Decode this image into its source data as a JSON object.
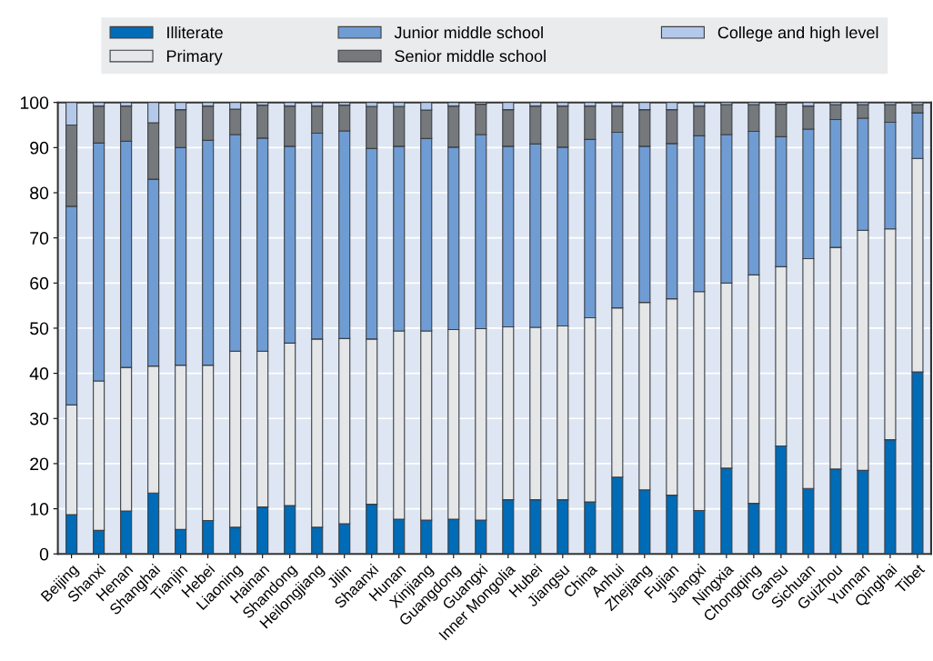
{
  "chart_data": {
    "type": "bar",
    "stacked": true,
    "categories": [
      "Beijing",
      "Shanxi",
      "Henan",
      "Shanghai",
      "Tianjin",
      "Hebei",
      "Liaoning",
      "Hainan",
      "Shandong",
      "Heilongjiang",
      "Jilin",
      "Shaanxi",
      "Hunan",
      "Xinjiang",
      "Guangdong",
      "Guangxi",
      "Inner Mongolia",
      "Hubei",
      "Jiangsu",
      "China",
      "Anhui",
      "Zhejiang",
      "Fujian",
      "Jiangxi",
      "Ningxia",
      "Chongqing",
      "Gansu",
      "Sichuan",
      "Guizhou",
      "Yunnan",
      "Qinghai",
      "Tibet"
    ],
    "series": [
      {
        "name": "Illiterate",
        "color": "#006bb6",
        "values": [
          8.7,
          5.2,
          9.5,
          13.5,
          5.4,
          7.4,
          5.9,
          10.4,
          10.7,
          5.9,
          6.7,
          11,
          7.7,
          7.5,
          7.7,
          7.5,
          12,
          12,
          12,
          11.5,
          17,
          14.2,
          13,
          9.6,
          19,
          11.2,
          23.9,
          14.5,
          18.8,
          18.5,
          25.3,
          40.3
        ]
      },
      {
        "name": "Primary",
        "color": "#e5e6e7",
        "values": [
          24.3,
          33.1,
          31.8,
          28.1,
          36.4,
          34.4,
          39,
          34.5,
          36,
          41.7,
          41,
          36.6,
          41.7,
          41.9,
          42,
          42.4,
          38.3,
          38.2,
          38.5,
          40.8,
          37.5,
          41.5,
          43.5,
          48.5,
          41,
          50.6,
          39.7,
          50.9,
          49.1,
          53.2,
          46.7,
          47.3
        ]
      },
      {
        "name": "Junior middle school",
        "color": "#709cd4",
        "values": [
          44,
          52.7,
          50.1,
          41.4,
          48.2,
          49.8,
          48,
          47.2,
          43.6,
          45.6,
          46,
          42.2,
          40.9,
          42.6,
          40.4,
          43,
          40,
          40.6,
          39.6,
          39.5,
          38.9,
          34.6,
          34.4,
          34.5,
          32.9,
          31.8,
          28.8,
          28.7,
          28.3,
          24.8,
          23.6,
          10.1
        ]
      },
      {
        "name": "Senior middle school",
        "color": "#76797c",
        "values": [
          18,
          8.2,
          7.8,
          12.5,
          8.4,
          7.6,
          5.6,
          7.3,
          8.9,
          6,
          5.7,
          9.3,
          8.8,
          6.3,
          9.1,
          6.7,
          8.1,
          8.4,
          9.1,
          7.4,
          5.8,
          8.1,
          7.5,
          6.6,
          6.6,
          5.9,
          7.2,
          5.1,
          3.3,
          3,
          3.9,
          1.8
        ]
      },
      {
        "name": "College and high level",
        "color": "#b4c9ea",
        "values": [
          5,
          0.8,
          0.8,
          4.5,
          1.6,
          0.8,
          1.5,
          0.6,
          0.8,
          0.8,
          0.6,
          0.9,
          0.9,
          1.7,
          0.8,
          0.4,
          1.6,
          0.8,
          0.8,
          0.8,
          0.8,
          1.6,
          1.6,
          0.8,
          0.5,
          0.5,
          0.4,
          0.8,
          0.5,
          0.5,
          0.5,
          0.5
        ]
      }
    ],
    "ylim": [
      0,
      100
    ],
    "yticks": [
      0,
      10,
      20,
      30,
      40,
      50,
      60,
      70,
      80,
      90,
      100
    ],
    "grid": true,
    "legend": "top"
  }
}
